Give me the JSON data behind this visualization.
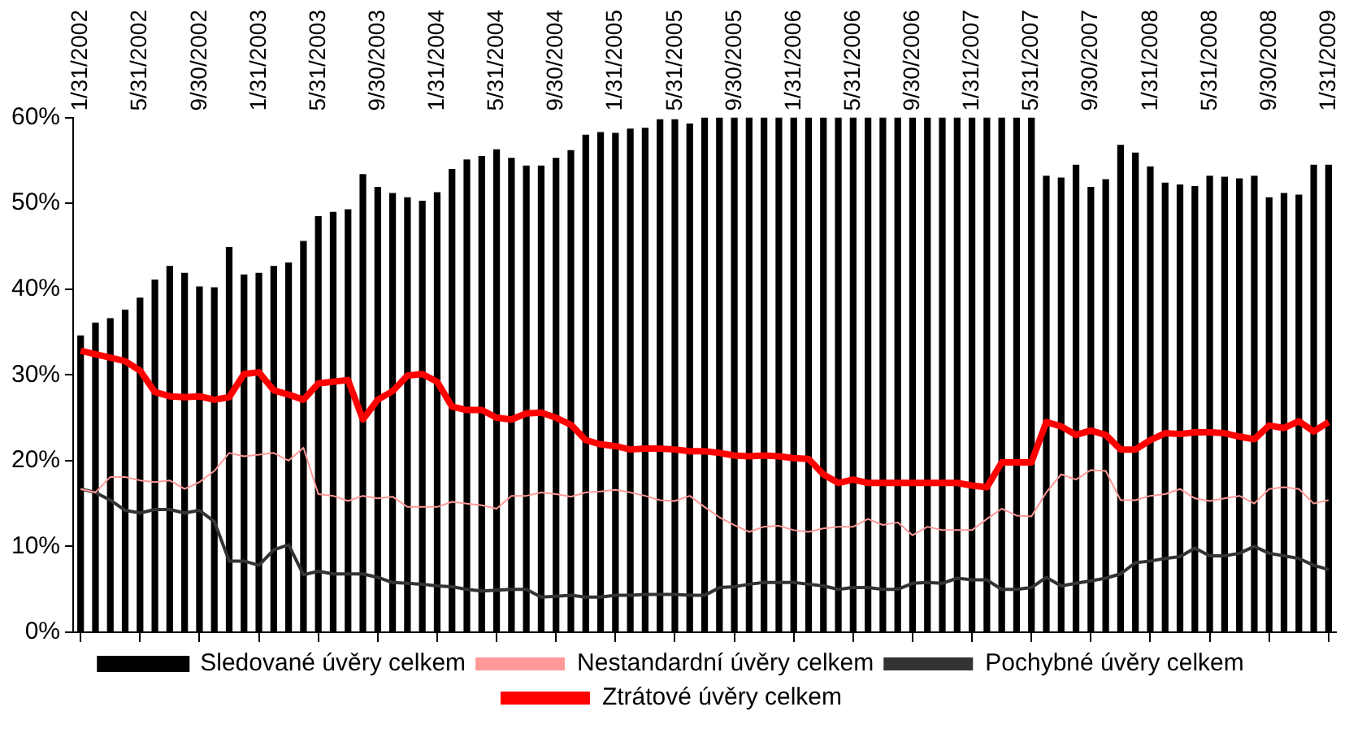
{
  "chart_data": {
    "type": "bar",
    "categories": [
      "1/31/2002",
      null,
      null,
      null,
      "5/31/2002",
      null,
      null,
      null,
      "9/30/2002",
      null,
      null,
      null,
      "1/31/2003",
      null,
      null,
      null,
      "5/31/2003",
      null,
      null,
      null,
      "9/30/2003",
      null,
      null,
      null,
      "1/31/2004",
      null,
      null,
      null,
      "5/31/2004",
      null,
      null,
      null,
      "9/30/2004",
      null,
      null,
      null,
      "1/31/2005",
      null,
      null,
      null,
      "5/31/2005",
      null,
      null,
      null,
      "9/30/2005",
      null,
      null,
      null,
      "1/31/2006",
      null,
      null,
      null,
      "5/31/2006",
      null,
      null,
      null,
      "9/30/2006",
      null,
      null,
      null,
      "1/31/2007",
      null,
      null,
      null,
      "5/31/2007",
      null,
      null,
      null,
      "9/30/2007",
      null,
      null,
      null,
      "1/31/2008",
      null,
      null,
      null,
      "5/31/2008",
      null,
      null,
      null,
      "9/30/2008",
      null,
      null,
      null,
      "1/31/2009"
    ],
    "series": [
      {
        "name": "Sledované úvěry celkem",
        "color": "#000000",
        "values": [
          34.6,
          36.1,
          36.6,
          37.6,
          39.0,
          41.1,
          42.7,
          41.9,
          40.3,
          40.2,
          44.9,
          41.7,
          41.9,
          42.7,
          43.1,
          45.6,
          48.5,
          49.0,
          49.3,
          53.4,
          51.9,
          51.2,
          50.7,
          50.3,
          51.3,
          54.0,
          55.1,
          55.5,
          56.3,
          55.3,
          54.4,
          54.4,
          55.3,
          56.2,
          58.0,
          58.3,
          58.2,
          58.7,
          58.8,
          59.8,
          59.8,
          59.3,
          60,
          60,
          60,
          60,
          60,
          60,
          60,
          60,
          60,
          60,
          60,
          60,
          60,
          60,
          60,
          60,
          60,
          60,
          60,
          60,
          60,
          60,
          60,
          53.2,
          53.0,
          54.5,
          51.9,
          52.8,
          56.8,
          55.9,
          54.3,
          52.4,
          52.2,
          52.0,
          53.2,
          53.1,
          52.9,
          53.2,
          50.7,
          51.2,
          51.0,
          54.5,
          54.5
        ]
      },
      {
        "name": "Nestandardní úvěry celkem",
        "type": "line",
        "color": "#ff9999",
        "values": [
          16.7,
          16.3,
          18.1,
          18.1,
          17.7,
          17.5,
          17.7,
          16.7,
          17.5,
          18.8,
          20.9,
          20.5,
          20.7,
          20.9,
          20.0,
          21.5,
          16.1,
          15.9,
          15.3,
          15.9,
          15.6,
          15.8,
          14.6,
          14.6,
          14.6,
          15.2,
          15.0,
          14.8,
          14.4,
          15.9,
          15.9,
          16.3,
          16.1,
          15.8,
          16.3,
          16.4,
          16.6,
          16.3,
          15.9,
          15.4,
          15.3,
          15.9,
          14.6,
          13.4,
          12.5,
          11.7,
          12.3,
          12.4,
          11.9,
          11.7,
          12.1,
          12.3,
          12.3,
          13.2,
          12.5,
          12.8,
          11.3,
          12.3,
          11.9,
          11.9,
          11.9,
          13.2,
          14.4,
          13.6,
          13.5,
          16.3,
          18.4,
          17.8,
          18.9,
          18.8,
          15.4,
          15.4,
          15.9,
          16.1,
          16.7,
          15.6,
          15.3,
          15.6,
          15.9,
          15.0,
          16.7,
          16.9,
          16.7,
          15.0,
          15.4
        ]
      },
      {
        "name": "Pochybné úvěry celkem",
        "type": "line",
        "color": "#333333",
        "values": [
          16.7,
          16.3,
          15.4,
          14.2,
          13.9,
          14.3,
          14.3,
          13.9,
          14.2,
          12.9,
          8.3,
          8.3,
          7.8,
          9.6,
          10.2,
          6.7,
          7.1,
          6.8,
          6.8,
          6.8,
          6.4,
          5.8,
          5.7,
          5.6,
          5.4,
          5.3,
          5.0,
          4.8,
          4.9,
          5.0,
          5.0,
          4.1,
          4.2,
          4.3,
          4.1,
          4.1,
          4.3,
          4.3,
          4.4,
          4.4,
          4.4,
          4.3,
          4.3,
          5.2,
          5.3,
          5.6,
          5.8,
          5.8,
          5.8,
          5.6,
          5.4,
          5.0,
          5.2,
          5.2,
          5.0,
          5.0,
          5.7,
          5.8,
          5.7,
          6.3,
          6.1,
          6.1,
          5.0,
          5.0,
          5.2,
          6.4,
          5.4,
          5.7,
          6.0,
          6.3,
          6.8,
          8.1,
          8.3,
          8.6,
          8.8,
          9.8,
          8.9,
          8.9,
          9.2,
          10.0,
          9.2,
          8.9,
          8.6,
          7.8,
          7.3
        ]
      },
      {
        "name": "Ztrátové úvěry celkem",
        "type": "line",
        "color": "#ff0000",
        "values": [
          32.8,
          32.4,
          32.0,
          31.6,
          30.5,
          28.0,
          27.5,
          27.4,
          27.5,
          27.1,
          27.4,
          30.1,
          30.3,
          28.2,
          27.7,
          27.1,
          29.0,
          29.2,
          29.4,
          24.8,
          27.1,
          28.1,
          29.9,
          30.1,
          29.2,
          26.3,
          25.9,
          25.9,
          25.0,
          24.8,
          25.5,
          25.6,
          25.0,
          24.2,
          22.4,
          21.9,
          21.7,
          21.3,
          21.4,
          21.4,
          21.3,
          21.1,
          21.1,
          20.9,
          20.6,
          20.5,
          20.6,
          20.5,
          20.3,
          20.2,
          18.4,
          17.4,
          17.8,
          17.4,
          17.4,
          17.4,
          17.4,
          17.4,
          17.4,
          17.4,
          17.1,
          16.9,
          19.8,
          19.8,
          19.8,
          24.5,
          24.0,
          23.0,
          23.5,
          23.0,
          21.3,
          21.3,
          22.4,
          23.2,
          23.1,
          23.3,
          23.3,
          23.2,
          22.8,
          22.5,
          24.1,
          23.8,
          24.6,
          23.4,
          24.5
        ]
      }
    ],
    "ylim": [
      0,
      60
    ],
    "yticks": [
      {
        "value": 0,
        "label": "0%"
      },
      {
        "value": 10,
        "label": "10%"
      },
      {
        "value": 20,
        "label": "20%"
      },
      {
        "value": 30,
        "label": "30%"
      },
      {
        "value": 40,
        "label": "40%"
      },
      {
        "value": 50,
        "label": "50%"
      },
      {
        "value": 60,
        "label": "60%"
      }
    ],
    "grid": false,
    "legend": "bottom",
    "marker": "none",
    "line_style": "solid"
  }
}
